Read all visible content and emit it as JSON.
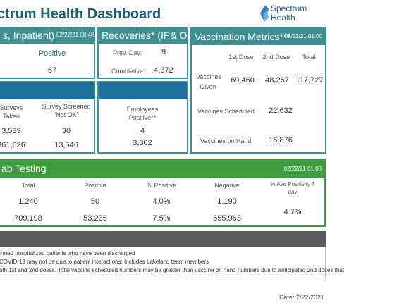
{
  "header": {
    "title": "ctrum Health Dashboard",
    "logo_line1": "Spectrum",
    "logo_line2": "Health"
  },
  "inpatient": {
    "title": "s, Inpatient)",
    "date": "02/22/21 08:48",
    "positive_label": "Positive",
    "positive_value": "67"
  },
  "recoveries": {
    "title": "Recoveries* (IP& Obs)",
    "prev_day_label": "Prev. Day:",
    "prev_day_value": "9",
    "cumulative_label": "Cumulative:",
    "cumulative_value": "4,372"
  },
  "vaccination": {
    "title": "Vaccination Metrics***",
    "date": "02/22/21 01:00",
    "col_first": "1st Dose",
    "col_second": "2nd Dose",
    "col_total": "Total",
    "given_label": "Vaccines Given",
    "given_first": "69,460",
    "given_second": "48,267",
    "given_total": "117,727",
    "scheduled_label": "Vaccines Scheduled",
    "scheduled_value": "22,632",
    "onhand_label": "Vaccines on Hand",
    "onhand_value": "16,876"
  },
  "survey": {
    "taken_label": "Surveys Taken",
    "screened_label": "Survey Screened \"Not OK\"",
    "taken_row1": "3,539",
    "screened_row1": "30",
    "taken_row2": "861,626",
    "screened_row2": "13,546"
  },
  "employees": {
    "label": "Employees Positive**",
    "row1": "4",
    "row2": "3,302"
  },
  "lab": {
    "title": "ab Testing",
    "date": "02/22/21 01:00",
    "col_total": "Total",
    "col_positive": "Positive",
    "col_pct_positive": "% Positive",
    "col_negative": "Negative",
    "col_ave": "% Ave Positivity 7 day",
    "row1_total": "1,240",
    "row1_positive": "50",
    "row1_pct": "4.0%",
    "row1_negative": "1,190",
    "row2_total": "709,198",
    "row2_positive": "53,235",
    "row2_pct": "7.5%",
    "row2_negative": "655,963",
    "ave_value": "4.7%"
  },
  "notes": {
    "line1": "irmed hospitalized patients who have been discharged",
    "line2": "COVID-19 may not be due to patient interactions; Includes Lakeland team members",
    "line3": "oth 1st and 2nd doses. Total vaccine scheduled numbers may be greater than vaccine on hand numbers due to anticipated 2nd doses that"
  },
  "footer": {
    "date": "Date: 2/22/2021"
  },
  "colors": {
    "teal": "#3f8f92",
    "blue": "#1f6f9a",
    "green": "#3e9c3e",
    "title": "#1b5f73"
  }
}
